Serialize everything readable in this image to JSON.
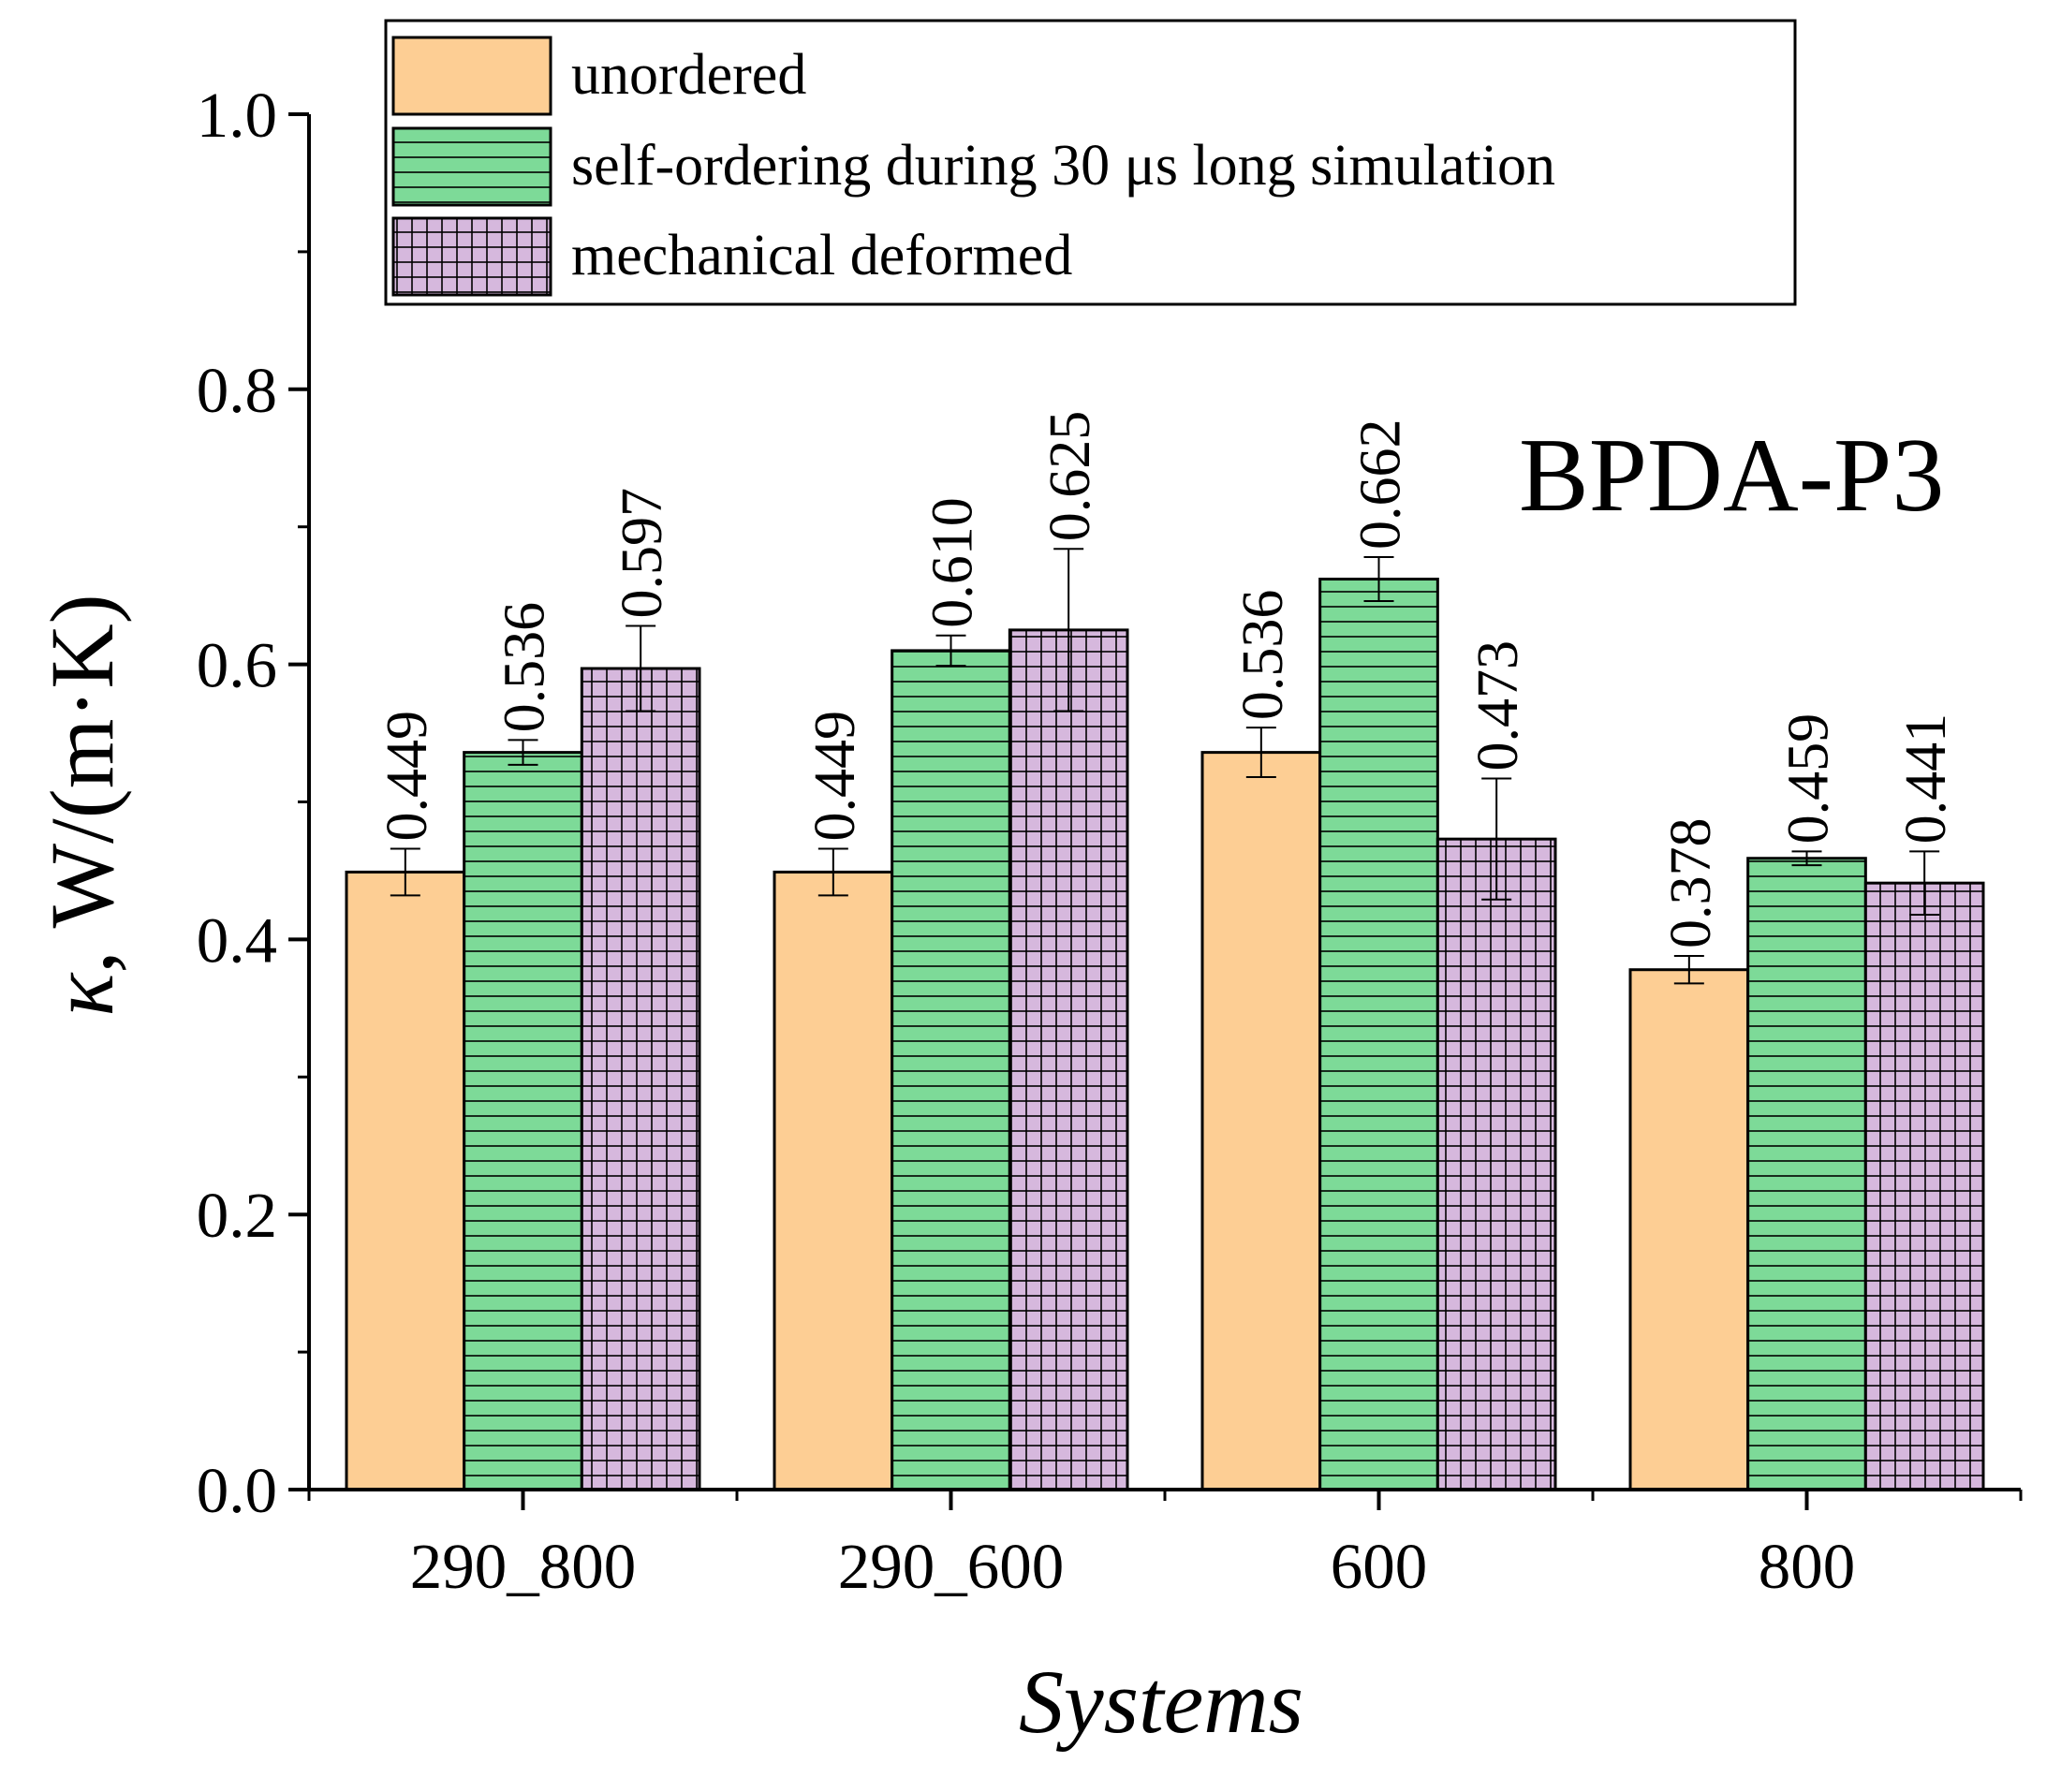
{
  "chart_data": {
    "type": "bar",
    "title": "",
    "annotation": "BPDA-P3",
    "xlabel": "Systems",
    "ylabel": "κ, W/(m·K)",
    "ylim": [
      0,
      1.0
    ],
    "yticks": [
      "0.0",
      "0.2",
      "0.4",
      "0.6",
      "0.8",
      "1.0"
    ],
    "grid": false,
    "legend_position": "top",
    "categories": [
      "290_800",
      "290_600",
      "600",
      "800"
    ],
    "series": [
      {
        "name": "unordered",
        "color": "#FDCE94",
        "pattern": "none",
        "values": [
          0.449,
          0.449,
          0.536,
          0.378
        ],
        "labels": [
          "0.449",
          "0.449",
          "0.536",
          "0.378"
        ],
        "errors": [
          0.017,
          0.017,
          0.018,
          0.01
        ]
      },
      {
        "name": "self-ordering during 30 μs long simulation",
        "color": "#7DDA98",
        "pattern": "horizontal",
        "values": [
          0.536,
          0.61,
          0.662,
          0.459
        ],
        "labels": [
          "0.536",
          "0.610",
          "0.662",
          "0.459"
        ],
        "errors": [
          0.009,
          0.011,
          0.016,
          0.005
        ]
      },
      {
        "name": "mechanical deformed",
        "color": "#D6B8DD",
        "pattern": "grid",
        "values": [
          0.597,
          0.625,
          0.473,
          0.441
        ],
        "labels": [
          "0.597",
          "0.625",
          "0.473",
          "0.441"
        ],
        "errors": [
          0.031,
          0.059,
          0.044,
          0.023
        ]
      }
    ]
  }
}
